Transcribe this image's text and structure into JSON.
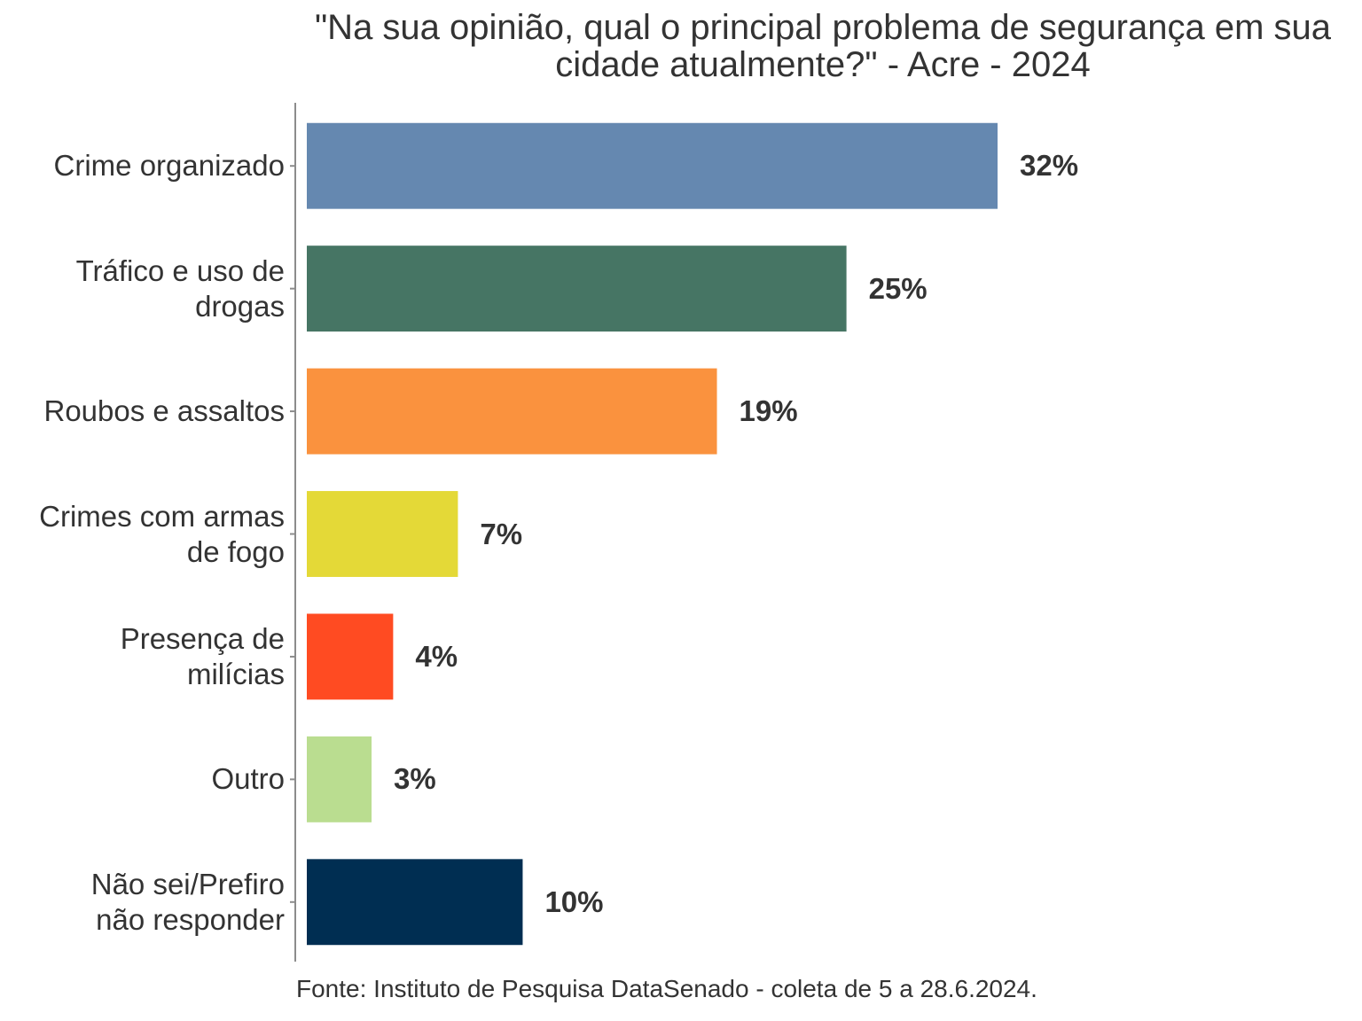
{
  "chart_data": {
    "type": "bar",
    "orientation": "horizontal",
    "title": "\"Na sua opinião, qual o principal problema de segurança em sua cidade atualmente?\" - Acre - 2024",
    "caption": "Fonte: Instituto de Pesquisa DataSenado - coleta de 5 a 28.6.2024.",
    "xlabel": "",
    "ylabel": "",
    "xlim": [
      0,
      32
    ],
    "grid": false,
    "legend": "none",
    "unit": "%",
    "categories": [
      "Crime organizado",
      "Tráfico e uso de\ndrogas",
      "Roubos e assaltos",
      "Crimes com armas\nde fogo",
      "Presença de\nmilícias",
      "Outro",
      "Não sei/Prefiro\nnão responder"
    ],
    "values": [
      32,
      25,
      19,
      7,
      4,
      3,
      10
    ],
    "labels": [
      "32%",
      "25%",
      "19%",
      "7%",
      "4%",
      "3%",
      "10%"
    ],
    "colors": [
      "#6588b0",
      "#467564",
      "#fa923e",
      "#e4d937",
      "#ff4b22",
      "#badd90",
      "#002e52"
    ]
  }
}
